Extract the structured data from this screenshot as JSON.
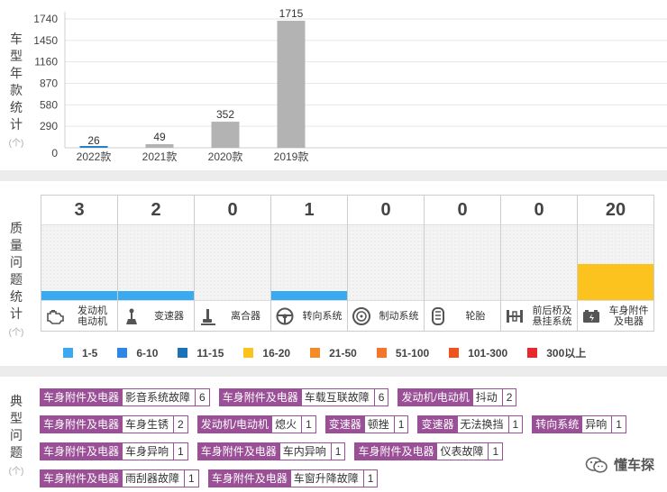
{
  "section_year": {
    "label_chars": [
      "车",
      "型",
      "年",
      "款",
      "统",
      "计"
    ],
    "unit": "(个)"
  },
  "chart_data": {
    "type": "bar",
    "categories": [
      "2022款",
      "2021款",
      "2020款",
      "2019款"
    ],
    "values": [
      26,
      49,
      352,
      1715
    ],
    "yticks": [
      0,
      290,
      580,
      870,
      1160,
      1450,
      1740
    ],
    "ylim": [
      0,
      1740
    ],
    "highlight_color": "#2b7fc4",
    "bar_color": "#b3b3b3",
    "grid": true
  },
  "section_quality": {
    "label_chars": [
      "质",
      "量",
      "问",
      "题",
      "统",
      "计"
    ],
    "unit": "(个)",
    "systems": [
      {
        "count": "3",
        "name": [
          "发动机",
          "电动机"
        ],
        "icon": "engine-icon",
        "fill_color": "#3aaaf0",
        "fill_level": 0.12
      },
      {
        "count": "2",
        "name": [
          "变速器"
        ],
        "icon": "gear-shift-icon",
        "fill_color": "#3aaaf0",
        "fill_level": 0.12
      },
      {
        "count": "0",
        "name": [
          "离合器"
        ],
        "icon": "clutch-pedal-icon",
        "fill_color": "",
        "fill_level": 0
      },
      {
        "count": "1",
        "name": [
          "转向系统"
        ],
        "icon": "steering-wheel-icon",
        "fill_color": "#3aaaf0",
        "fill_level": 0.12
      },
      {
        "count": "0",
        "name": [
          "制动系统"
        ],
        "icon": "brake-disc-icon",
        "fill_color": "",
        "fill_level": 0
      },
      {
        "count": "0",
        "name": [
          "轮胎"
        ],
        "icon": "tire-icon",
        "fill_color": "",
        "fill_level": 0
      },
      {
        "count": "0",
        "name": [
          "前后桥及",
          "悬挂系统"
        ],
        "icon": "axle-icon",
        "fill_color": "",
        "fill_level": 0
      },
      {
        "count": "20",
        "name": [
          "车身附件",
          "及电器"
        ],
        "icon": "battery-icon",
        "fill_color": "#fcc21e",
        "fill_level": 0.48
      }
    ],
    "legend": [
      {
        "label": "1-5",
        "color": "#3aaaf0"
      },
      {
        "label": "6-10",
        "color": "#2d87e6"
      },
      {
        "label": "11-15",
        "color": "#1a73b8"
      },
      {
        "label": "16-20",
        "color": "#fcc21e"
      },
      {
        "label": "21-50",
        "color": "#f68a26"
      },
      {
        "label": "51-100",
        "color": "#f5762a"
      },
      {
        "label": "101-300",
        "color": "#f0521e"
      },
      {
        "label": "300以上",
        "color": "#e8282c"
      }
    ]
  },
  "section_issues": {
    "label_chars": [
      "典",
      "型",
      "问",
      "题"
    ],
    "unit": "(个)",
    "rows": [
      [
        {
          "system": "车身附件及电器",
          "problem": "影音系统故障",
          "count": "6"
        },
        {
          "system": "车身附件及电器",
          "problem": "车载互联故障",
          "count": "6"
        },
        {
          "system": "发动机/电动机",
          "problem": "抖动",
          "count": "2"
        }
      ],
      [
        {
          "system": "车身附件及电器",
          "problem": "车身生锈",
          "count": "2"
        },
        {
          "system": "发动机/电动机",
          "problem": "熄火",
          "count": "1"
        },
        {
          "system": "变速器",
          "problem": "顿挫",
          "count": "1"
        },
        {
          "system": "变速器",
          "problem": "无法换挡",
          "count": "1"
        },
        {
          "system": "转向系统",
          "problem": "异响",
          "count": "1"
        }
      ],
      [
        {
          "system": "车身附件及电器",
          "problem": "车身异响",
          "count": "1"
        },
        {
          "system": "车身附件及电器",
          "problem": "车内异响",
          "count": "1"
        },
        {
          "system": "车身附件及电器",
          "problem": "仪表故障",
          "count": "1"
        }
      ],
      [
        {
          "system": "车身附件及电器",
          "problem": "雨刮器故障",
          "count": "1"
        },
        {
          "system": "车身附件及电器",
          "problem": "车窗升降故障",
          "count": "1"
        }
      ]
    ]
  },
  "watermark": {
    "text": "懂车探",
    "icon": "wechat-icon"
  }
}
